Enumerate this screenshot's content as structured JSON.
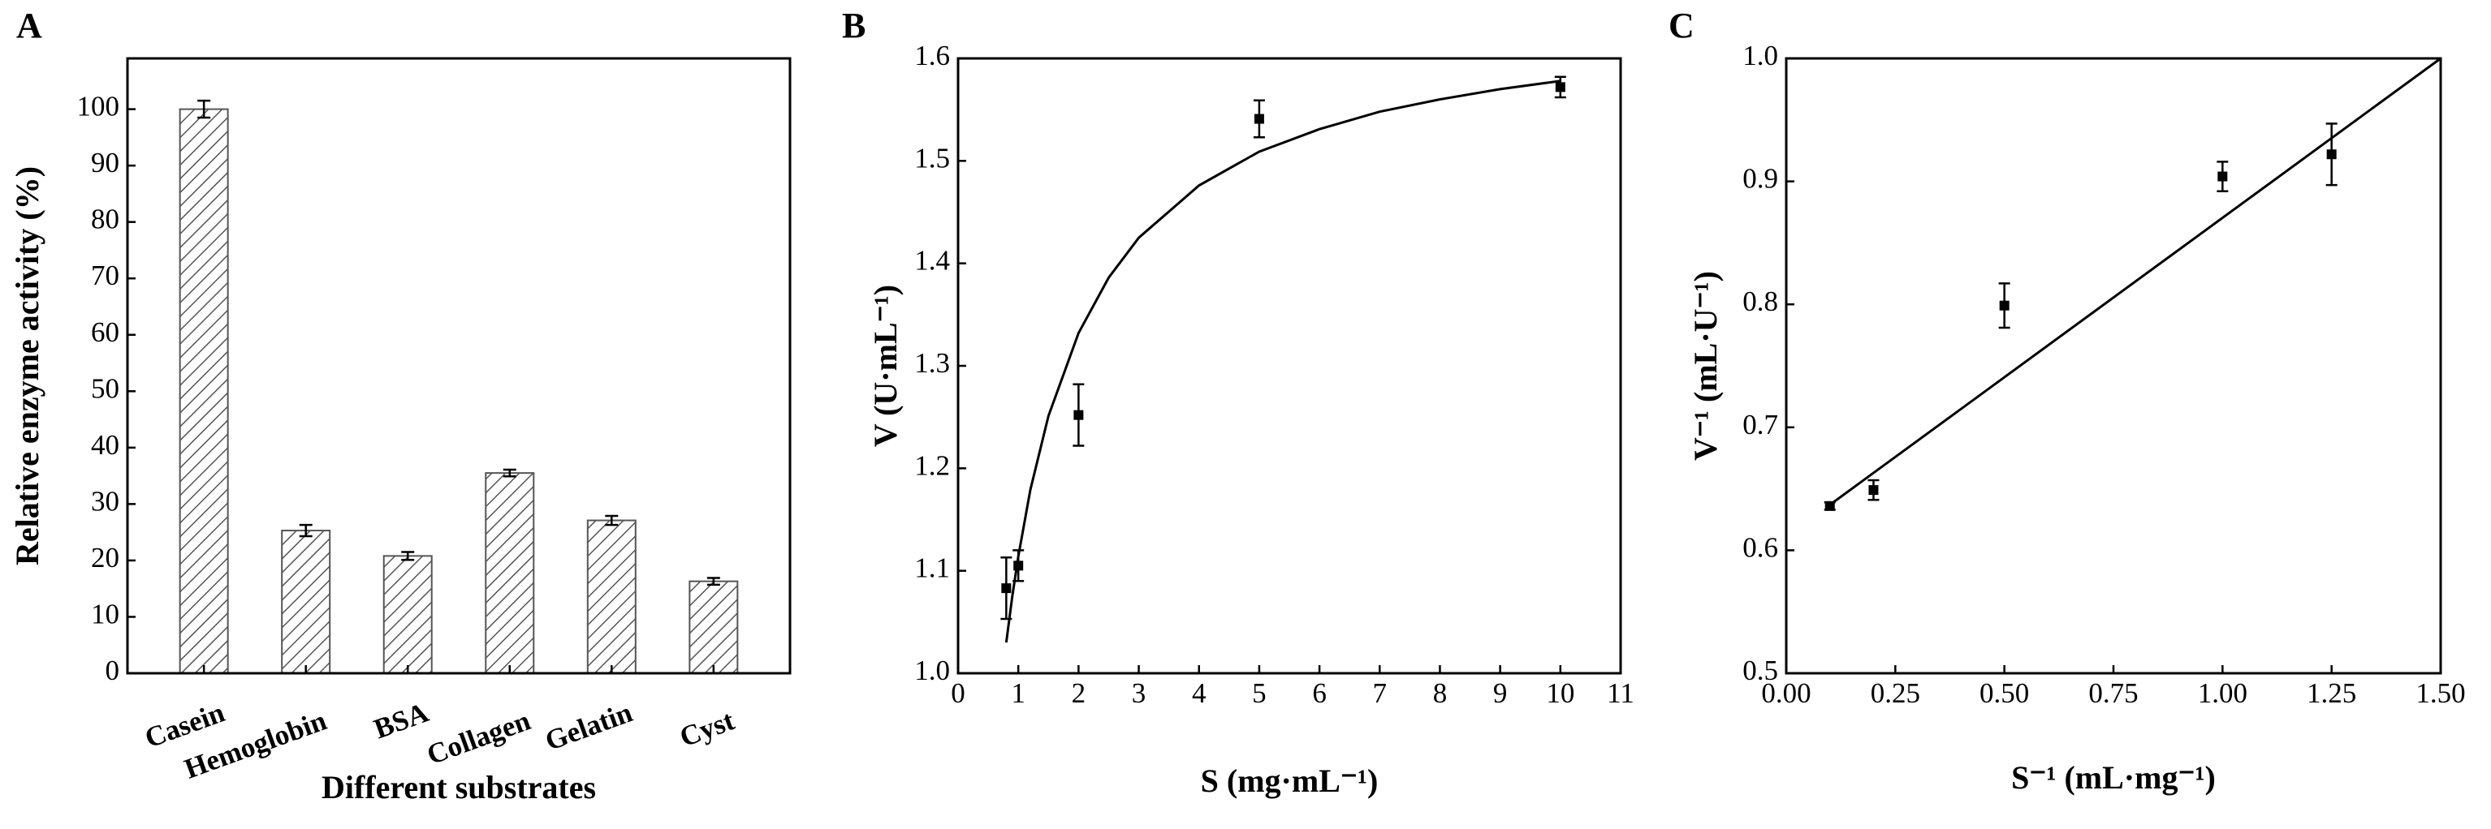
{
  "chart_data": [
    {
      "type": "bar",
      "panel_label": "A",
      "xlabel": "Different substrates",
      "ylabel": "Relative enzyme activity (%)",
      "categories": [
        "Casein",
        "Hemoglobin",
        "BSA",
        "Collagen",
        "Gelatin",
        "Cyst"
      ],
      "values": [
        100,
        25.3,
        20.8,
        35.5,
        27.1,
        16.3
      ],
      "errors": [
        1.5,
        1.0,
        0.7,
        0.6,
        0.8,
        0.6
      ],
      "color": "#555555",
      "ylim": [
        0,
        109
      ],
      "yticks": [
        0,
        10,
        20,
        30,
        40,
        50,
        60,
        70,
        80,
        90,
        100
      ]
    },
    {
      "type": "scatter",
      "panel_label": "B",
      "xlabel": "S (mg·mL⁻¹)",
      "ylabel": "V (U·mL⁻¹)",
      "x": [
        0.8,
        1,
        2,
        5,
        10
      ],
      "values": [
        1.083,
        1.105,
        1.252,
        1.541,
        1.572
      ],
      "errors": [
        0.03,
        0.015,
        0.03,
        0.018,
        0.01
      ],
      "fit": {
        "x": [
          0.8,
          0.9,
          1,
          1.2,
          1.5,
          2,
          2.5,
          3,
          4,
          5,
          6,
          7,
          8,
          9,
          10
        ],
        "values": [
          1.03,
          1.075,
          1.114,
          1.179,
          1.251,
          1.332,
          1.386,
          1.425,
          1.476,
          1.509,
          1.531,
          1.548,
          1.56,
          1.57,
          1.578
        ]
      },
      "color": "#000000",
      "xlim": [
        0,
        11
      ],
      "xticks": [
        0,
        1,
        2,
        3,
        4,
        5,
        6,
        7,
        8,
        9,
        10,
        11
      ],
      "ylim": [
        1.0,
        1.6
      ],
      "yticks": [
        {
          "value": 1,
          "label": "1.0"
        },
        1.1,
        1.2,
        1.3,
        1.4,
        1.5,
        1.6
      ]
    },
    {
      "type": "scatter",
      "panel_label": "C",
      "xlabel": "S⁻¹ (mL·mg⁻¹)",
      "ylabel": "V⁻¹ (mL·U⁻¹)",
      "x": [
        0.1,
        0.2,
        0.5,
        1.0,
        1.25
      ],
      "values": [
        0.636,
        0.649,
        0.799,
        0.904,
        0.922
      ],
      "errors": [
        0.003,
        0.008,
        0.018,
        0.012,
        0.025
      ],
      "fit": {
        "x": [
          0.1,
          1.5
        ],
        "values": [
          0.637,
          1.0
        ]
      },
      "color": "#000000",
      "xlim": [
        0,
        1.5
      ],
      "xticks": [
        {
          "value": 0,
          "label": "0.00"
        },
        0.25,
        {
          "value": 0.5,
          "label": "0.50"
        },
        0.75,
        {
          "value": 1,
          "label": "1.00"
        },
        1.25,
        {
          "value": 1.5,
          "label": "1.50"
        }
      ],
      "ylim": [
        0.5,
        1.0
      ],
      "yticks": [
        0.5,
        0.6,
        0.7,
        0.8,
        0.9,
        {
          "value": 1,
          "label": "1.0"
        }
      ]
    }
  ]
}
